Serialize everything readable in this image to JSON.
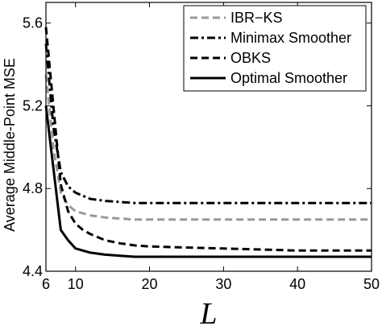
{
  "chart_data": {
    "type": "line",
    "xlabel": "L",
    "ylabel": "Average Middle-Point MSE",
    "xlim": [
      6,
      50
    ],
    "ylim": [
      4.4,
      5.7
    ],
    "xticks": [
      6,
      10,
      20,
      30,
      40,
      50
    ],
    "xtick_labels": [
      "6",
      "10",
      "20",
      "30",
      "40",
      "50"
    ],
    "yticks": [
      4.4,
      4.8,
      5.2,
      5.6
    ],
    "ytick_labels": [
      "4.4",
      "4.8",
      "5.2",
      "5.6"
    ],
    "grid": false,
    "legend_position": "top-right",
    "series": [
      {
        "name": "IBR−KS",
        "color": "#999999",
        "dash": "dashed",
        "x": [
          6,
          7,
          8,
          9,
          10,
          12,
          14,
          16,
          18,
          20,
          25,
          30,
          35,
          40,
          45,
          50
        ],
        "y": [
          5.35,
          5.0,
          4.78,
          4.72,
          4.69,
          4.67,
          4.66,
          4.655,
          4.65,
          4.65,
          4.65,
          4.65,
          4.65,
          4.65,
          4.65,
          4.65
        ]
      },
      {
        "name": "Minimax Smoother",
        "color": "#000000",
        "dash": "dashdot",
        "x": [
          6,
          7,
          8,
          9,
          10,
          12,
          14,
          16,
          18,
          20,
          25,
          30,
          35,
          40,
          45,
          50
        ],
        "y": [
          5.5,
          5.1,
          4.88,
          4.81,
          4.78,
          4.75,
          4.74,
          4.735,
          4.73,
          4.73,
          4.73,
          4.73,
          4.73,
          4.73,
          4.73,
          4.73
        ]
      },
      {
        "name": "OBKS",
        "color": "#000000",
        "dash": "dashed",
        "x": [
          6,
          7,
          8,
          9,
          10,
          11,
          12,
          14,
          16,
          18,
          20,
          25,
          30,
          35,
          40,
          45,
          50
        ],
        "y": [
          5.58,
          5.2,
          4.82,
          4.69,
          4.63,
          4.6,
          4.58,
          4.55,
          4.535,
          4.525,
          4.52,
          4.515,
          4.51,
          4.505,
          4.5,
          4.5,
          4.5
        ]
      },
      {
        "name": "Optimal Smoother",
        "color": "#000000",
        "dash": "solid",
        "x": [
          6,
          7,
          8,
          9,
          10,
          11,
          12,
          14,
          16,
          18,
          20,
          25,
          30,
          35,
          40,
          45,
          50
        ],
        "y": [
          5.2,
          4.9,
          4.6,
          4.55,
          4.51,
          4.5,
          4.49,
          4.48,
          4.475,
          4.47,
          4.47,
          4.47,
          4.47,
          4.47,
          4.47,
          4.47,
          4.47
        ]
      }
    ]
  }
}
